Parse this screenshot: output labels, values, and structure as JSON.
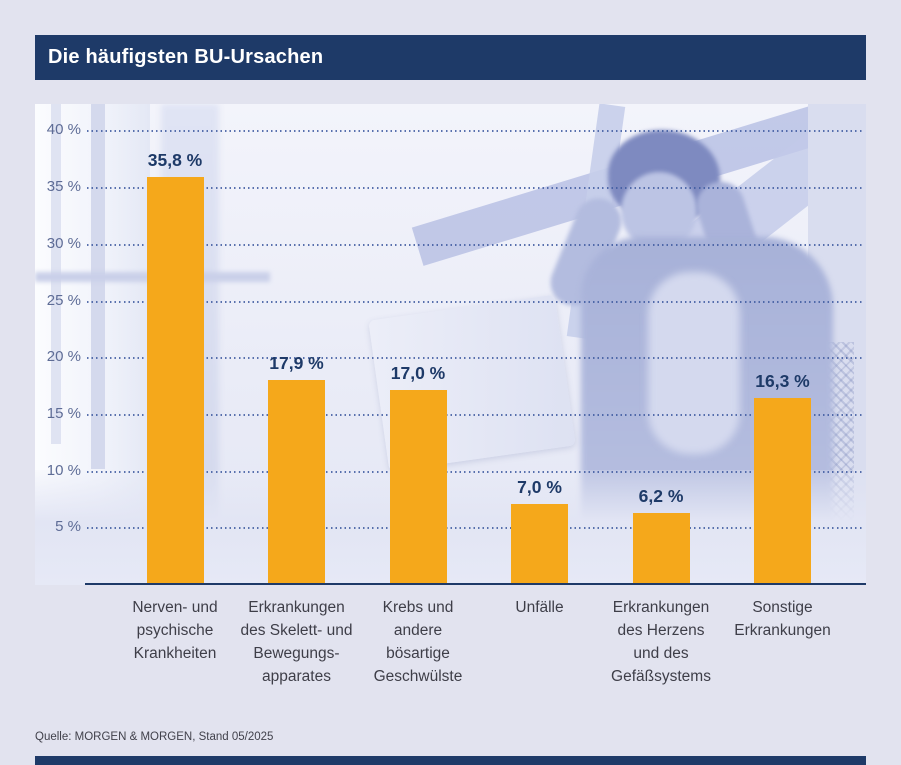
{
  "header": {
    "title": "Die häufigsten BU-Ursachen"
  },
  "chart_data": {
    "type": "bar",
    "title": "Die häufigsten BU-Ursachen",
    "categories": [
      [
        "Nerven- und",
        "psychische",
        "Krankheiten"
      ],
      [
        "Erkrankungen",
        "des Skelett- und",
        "Bewegungs-",
        "apparates"
      ],
      [
        "Krebs und",
        "andere",
        "bösartige",
        "Geschwülste"
      ],
      [
        "Unfälle"
      ],
      [
        "Erkrankungen",
        "des Herzens",
        "und des",
        "Gefäßsystems"
      ],
      [
        "Sonstige",
        "Erkrankungen"
      ]
    ],
    "values": [
      35.8,
      17.9,
      17.0,
      7.0,
      6.2,
      16.3
    ],
    "value_labels": [
      "35,8 %",
      "17,9 %",
      "17,0 %",
      "7,0 %",
      "6,2 %",
      "16,3 %"
    ],
    "unit": "%",
    "ylim": [
      0,
      42
    ],
    "yticks": [
      40,
      35,
      30,
      25,
      20,
      15,
      10,
      5
    ],
    "ytick_labels": [
      "40 %",
      "35 %",
      "30 %",
      "25 %",
      "20 %",
      "15 %",
      "10 %",
      "5 %"
    ],
    "grid": "horizontal-dotted",
    "legend": "none",
    "bar_color": "#F5A81B",
    "value_label_color": "#1E3A68"
  },
  "footer": {
    "source": "Quelle: MORGEN & MORGEN, Stand 05/2025"
  },
  "colors": {
    "page_bg": "#E2E3EF",
    "header_bg": "#1E3A68",
    "grid_color": "#3E5AA0",
    "tick_color": "#5E6C96",
    "category_color": "#3E3E48",
    "source_color": "#41414B",
    "photo_tint": "#AEB7DC"
  }
}
